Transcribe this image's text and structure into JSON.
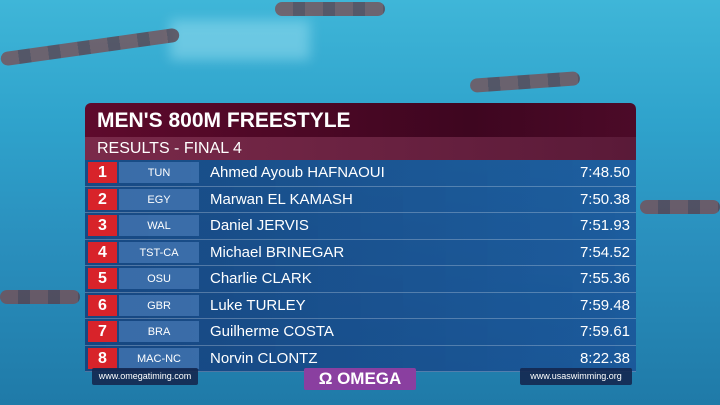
{
  "header": {
    "title": "MEN'S 800M FREESTYLE",
    "subtitle": "RESULTS - FINAL 4"
  },
  "table": {
    "rows": [
      [
        "1",
        "TUN",
        "Ahmed Ayoub HAFNAOUI",
        "7:48.50"
      ],
      [
        "2",
        "EGY",
        "Marwan EL KAMASH",
        "7:50.38"
      ],
      [
        "3",
        "WAL",
        "Daniel JERVIS",
        "7:51.93"
      ],
      [
        "4",
        "TST-CA",
        "Michael BRINEGAR",
        "7:54.52"
      ],
      [
        "5",
        "OSU",
        "Charlie CLARK",
        "7:55.36"
      ],
      [
        "6",
        "GBR",
        "Luke TURLEY",
        "7:59.48"
      ],
      [
        "7",
        "BRA",
        "Guilherme COSTA",
        "7:59.61"
      ],
      [
        "8",
        "MAC-NC",
        "Norvin CLONTZ",
        "8:22.38"
      ]
    ]
  },
  "footer": {
    "left": "www.omegatiming.com",
    "logo": {
      "symbol": "Ω",
      "text": "OMEGA"
    },
    "right": "www.usaswimming.org"
  }
}
